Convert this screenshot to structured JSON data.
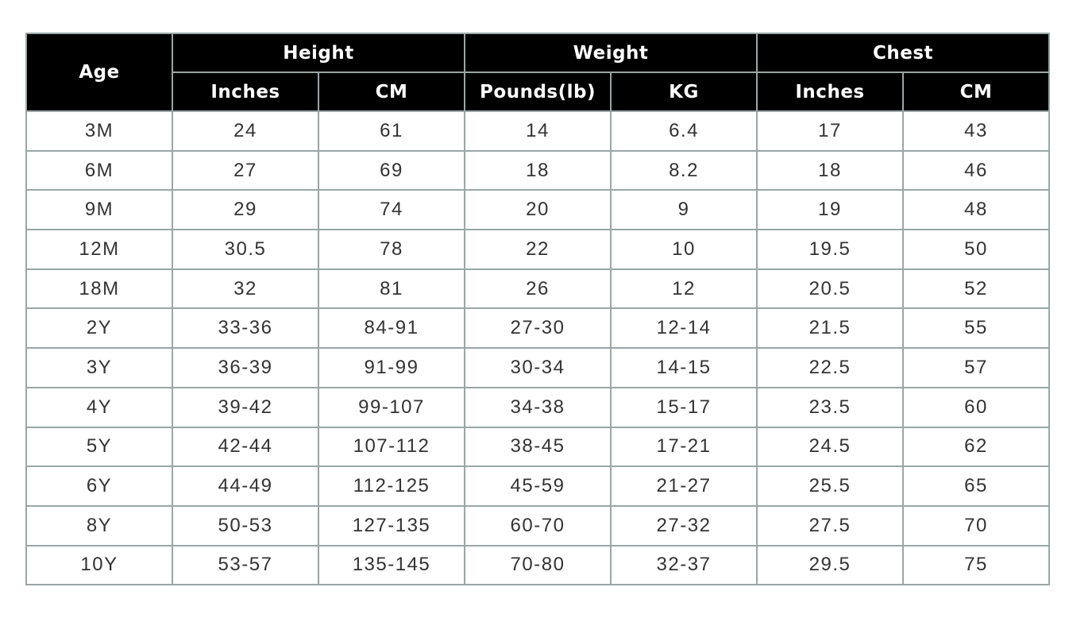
{
  "header": {
    "age": "Age",
    "groups": [
      "Height",
      "Weight",
      "Chest"
    ],
    "subheaders": [
      "Inches",
      "CM",
      "Pounds(lb)",
      "KG",
      "Inches",
      "CM"
    ]
  },
  "rows": [
    [
      "3M",
      "24",
      "61",
      "14",
      "6.4",
      "17",
      "43"
    ],
    [
      "6M",
      "27",
      "69",
      "18",
      "8.2",
      "18",
      "46"
    ],
    [
      "9M",
      "29",
      "74",
      "20",
      "9",
      "19",
      "48"
    ],
    [
      "12M",
      "30.5",
      "78",
      "22",
      "10",
      "19.5",
      "50"
    ],
    [
      "18M",
      "32",
      "81",
      "26",
      "12",
      "20.5",
      "52"
    ],
    [
      "2Y",
      "33-36",
      "84-91",
      "27-30",
      "12-14",
      "21.5",
      "55"
    ],
    [
      "3Y",
      "36-39",
      "91-99",
      "30-34",
      "14-15",
      "22.5",
      "57"
    ],
    [
      "4Y",
      "39-42",
      "99-107",
      "34-38",
      "15-17",
      "23.5",
      "60"
    ],
    [
      "5Y",
      "42-44",
      "107-112",
      "38-45",
      "17-21",
      "24.5",
      "62"
    ],
    [
      "6Y",
      "44-49",
      "112-125",
      "45-59",
      "21-27",
      "25.5",
      "65"
    ],
    [
      "8Y",
      "50-53",
      "127-135",
      "60-70",
      "27-32",
      "27.5",
      "70"
    ],
    [
      "10Y",
      "53-57",
      "135-145",
      "70-80",
      "32-37",
      "29.5",
      "75"
    ]
  ]
}
